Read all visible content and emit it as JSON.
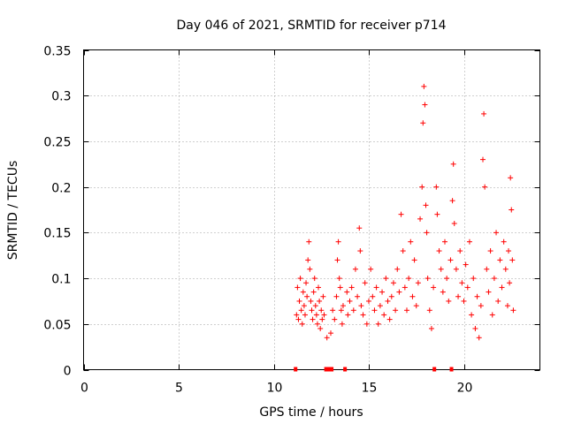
{
  "chart_data": {
    "type": "scatter",
    "title": "Day 046 of 2021, SRMTID for receiver p714",
    "xlabel": "GPS time / hours",
    "ylabel": "SRMTID / TECUs",
    "xlim": [
      0,
      24
    ],
    "ylim": [
      0,
      0.35
    ],
    "xticks": [
      0,
      5,
      10,
      15,
      20
    ],
    "yticks": [
      0,
      0.05,
      0.1,
      0.15,
      0.2,
      0.25,
      0.3,
      0.35
    ],
    "ytick_labels": [
      "0",
      "0.05",
      "0.1",
      "0.15",
      "0.2",
      "0.25",
      "0.3",
      "0.35"
    ],
    "grid": true,
    "marker": "+",
    "color": "#ff0000",
    "data_gap_markers_x": [
      11.15,
      12.75,
      12.9,
      13.05,
      13.75,
      18.45,
      19.35
    ],
    "series": [
      {
        "name": "SRMTID",
        "points": [
          [
            11.2,
            0.06
          ],
          [
            11.25,
            0.09
          ],
          [
            11.3,
            0.055
          ],
          [
            11.35,
            0.075
          ],
          [
            11.4,
            0.1
          ],
          [
            11.45,
            0.065
          ],
          [
            11.5,
            0.05
          ],
          [
            11.55,
            0.085
          ],
          [
            11.6,
            0.07
          ],
          [
            11.65,
            0.06
          ],
          [
            11.7,
            0.095
          ],
          [
            11.75,
            0.08
          ],
          [
            11.8,
            0.12
          ],
          [
            11.85,
            0.14
          ],
          [
            11.9,
            0.11
          ],
          [
            11.95,
            0.075
          ],
          [
            12.0,
            0.065
          ],
          [
            12.05,
            0.055
          ],
          [
            12.1,
            0.085
          ],
          [
            12.15,
            0.1
          ],
          [
            12.2,
            0.07
          ],
          [
            12.25,
            0.06
          ],
          [
            12.3,
            0.05
          ],
          [
            12.35,
            0.09
          ],
          [
            12.4,
            0.075
          ],
          [
            12.45,
            0.045
          ],
          [
            12.5,
            0.065
          ],
          [
            12.55,
            0.055
          ],
          [
            12.6,
            0.08
          ],
          [
            12.65,
            0.06
          ],
          [
            12.8,
            0.035
          ],
          [
            13.0,
            0.04
          ],
          [
            13.1,
            0.065
          ],
          [
            13.2,
            0.055
          ],
          [
            13.3,
            0.08
          ],
          [
            13.35,
            0.12
          ],
          [
            13.4,
            0.14
          ],
          [
            13.45,
            0.1
          ],
          [
            13.5,
            0.09
          ],
          [
            13.55,
            0.065
          ],
          [
            13.6,
            0.05
          ],
          [
            13.65,
            0.07
          ],
          [
            13.85,
            0.085
          ],
          [
            13.9,
            0.06
          ],
          [
            14.0,
            0.075
          ],
          [
            14.1,
            0.09
          ],
          [
            14.2,
            0.065
          ],
          [
            14.3,
            0.11
          ],
          [
            14.4,
            0.08
          ],
          [
            14.5,
            0.155
          ],
          [
            14.55,
            0.13
          ],
          [
            14.6,
            0.07
          ],
          [
            14.7,
            0.06
          ],
          [
            14.8,
            0.095
          ],
          [
            14.9,
            0.05
          ],
          [
            15.0,
            0.075
          ],
          [
            15.1,
            0.11
          ],
          [
            15.2,
            0.08
          ],
          [
            15.3,
            0.065
          ],
          [
            15.4,
            0.09
          ],
          [
            15.5,
            0.05
          ],
          [
            15.6,
            0.07
          ],
          [
            15.7,
            0.085
          ],
          [
            15.8,
            0.06
          ],
          [
            15.9,
            0.1
          ],
          [
            16.0,
            0.075
          ],
          [
            16.1,
            0.055
          ],
          [
            16.2,
            0.08
          ],
          [
            16.3,
            0.095
          ],
          [
            16.4,
            0.065
          ],
          [
            16.5,
            0.11
          ],
          [
            16.6,
            0.085
          ],
          [
            16.7,
            0.17
          ],
          [
            16.8,
            0.13
          ],
          [
            16.9,
            0.09
          ],
          [
            17.0,
            0.065
          ],
          [
            17.1,
            0.1
          ],
          [
            17.2,
            0.14
          ],
          [
            17.3,
            0.08
          ],
          [
            17.4,
            0.12
          ],
          [
            17.5,
            0.07
          ],
          [
            17.6,
            0.095
          ],
          [
            17.7,
            0.165
          ],
          [
            17.8,
            0.2
          ],
          [
            17.85,
            0.27
          ],
          [
            17.9,
            0.31
          ],
          [
            17.95,
            0.29
          ],
          [
            18.0,
            0.18
          ],
          [
            18.05,
            0.15
          ],
          [
            18.1,
            0.1
          ],
          [
            18.2,
            0.065
          ],
          [
            18.3,
            0.045
          ],
          [
            18.4,
            0.09
          ],
          [
            18.55,
            0.2
          ],
          [
            18.6,
            0.17
          ],
          [
            18.7,
            0.13
          ],
          [
            18.8,
            0.11
          ],
          [
            18.9,
            0.085
          ],
          [
            19.0,
            0.14
          ],
          [
            19.1,
            0.1
          ],
          [
            19.2,
            0.075
          ],
          [
            19.3,
            0.12
          ],
          [
            19.4,
            0.185
          ],
          [
            19.45,
            0.225
          ],
          [
            19.5,
            0.16
          ],
          [
            19.6,
            0.11
          ],
          [
            19.7,
            0.08
          ],
          [
            19.8,
            0.13
          ],
          [
            19.9,
            0.095
          ],
          [
            20.0,
            0.075
          ],
          [
            20.1,
            0.115
          ],
          [
            20.2,
            0.09
          ],
          [
            20.3,
            0.14
          ],
          [
            20.4,
            0.06
          ],
          [
            20.5,
            0.1
          ],
          [
            20.6,
            0.045
          ],
          [
            20.7,
            0.08
          ],
          [
            20.8,
            0.035
          ],
          [
            20.9,
            0.07
          ],
          [
            21.0,
            0.23
          ],
          [
            21.05,
            0.28
          ],
          [
            21.1,
            0.2
          ],
          [
            21.2,
            0.11
          ],
          [
            21.3,
            0.085
          ],
          [
            21.4,
            0.13
          ],
          [
            21.5,
            0.06
          ],
          [
            21.6,
            0.1
          ],
          [
            21.7,
            0.15
          ],
          [
            21.8,
            0.075
          ],
          [
            21.9,
            0.12
          ],
          [
            22.0,
            0.09
          ],
          [
            22.1,
            0.14
          ],
          [
            22.2,
            0.11
          ],
          [
            22.3,
            0.07
          ],
          [
            22.35,
            0.13
          ],
          [
            22.4,
            0.095
          ],
          [
            22.45,
            0.21
          ],
          [
            22.5,
            0.175
          ],
          [
            22.55,
            0.12
          ],
          [
            22.6,
            0.065
          ]
        ]
      }
    ]
  }
}
